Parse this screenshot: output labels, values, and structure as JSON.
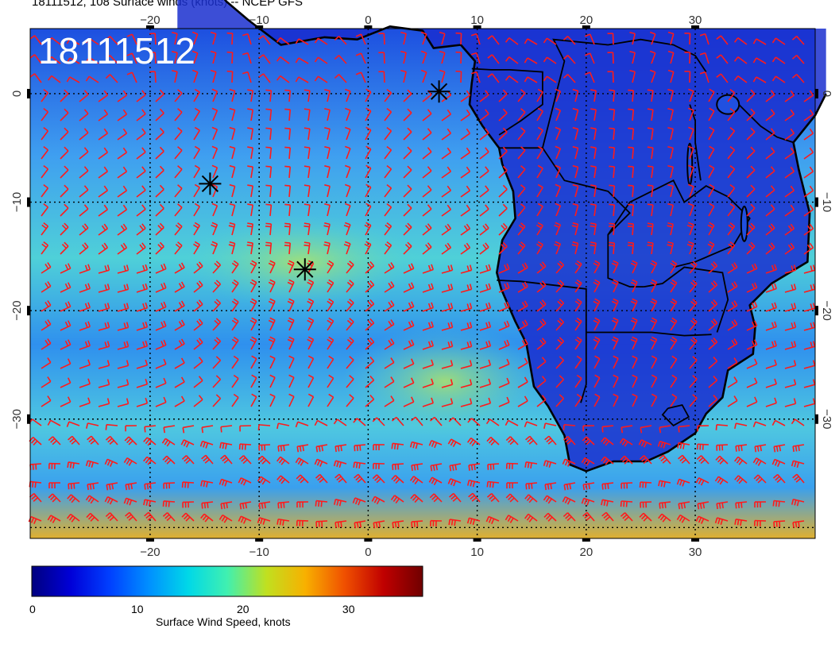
{
  "title": "18111512, 108 Surface winds (knots) -- NCEP GFS",
  "datestamp": "18111512",
  "colorbar": {
    "label": "Surface Wind Speed, knots",
    "ticks": [
      "0",
      "10",
      "20",
      "30"
    ],
    "range": [
      0,
      37
    ],
    "colors": [
      "#00007f",
      "#0000d8",
      "#0040ff",
      "#0090ff",
      "#00d8e8",
      "#40f0b0",
      "#c0e020",
      "#f8b000",
      "#f05000",
      "#c00000",
      "#700000"
    ]
  },
  "map": {
    "lon_range": [
      -31,
      41
    ],
    "lat_range": [
      -41,
      6
    ],
    "lon_ticks": [
      "-20",
      "-10",
      "0",
      "10",
      "20",
      "30"
    ],
    "lat_ticks": [
      "0",
      "-10",
      "-20",
      "-30"
    ],
    "barb_color": "#ff1a1a",
    "land_color": "#1a2fcf",
    "ocean_color": "#2a7ff0",
    "storm_markers": [
      {
        "lon": 6.5,
        "lat": 0.2
      },
      {
        "lon": -14.5,
        "lat": -8.3
      },
      {
        "lon": -5.8,
        "lat": -16.2
      }
    ]
  }
}
